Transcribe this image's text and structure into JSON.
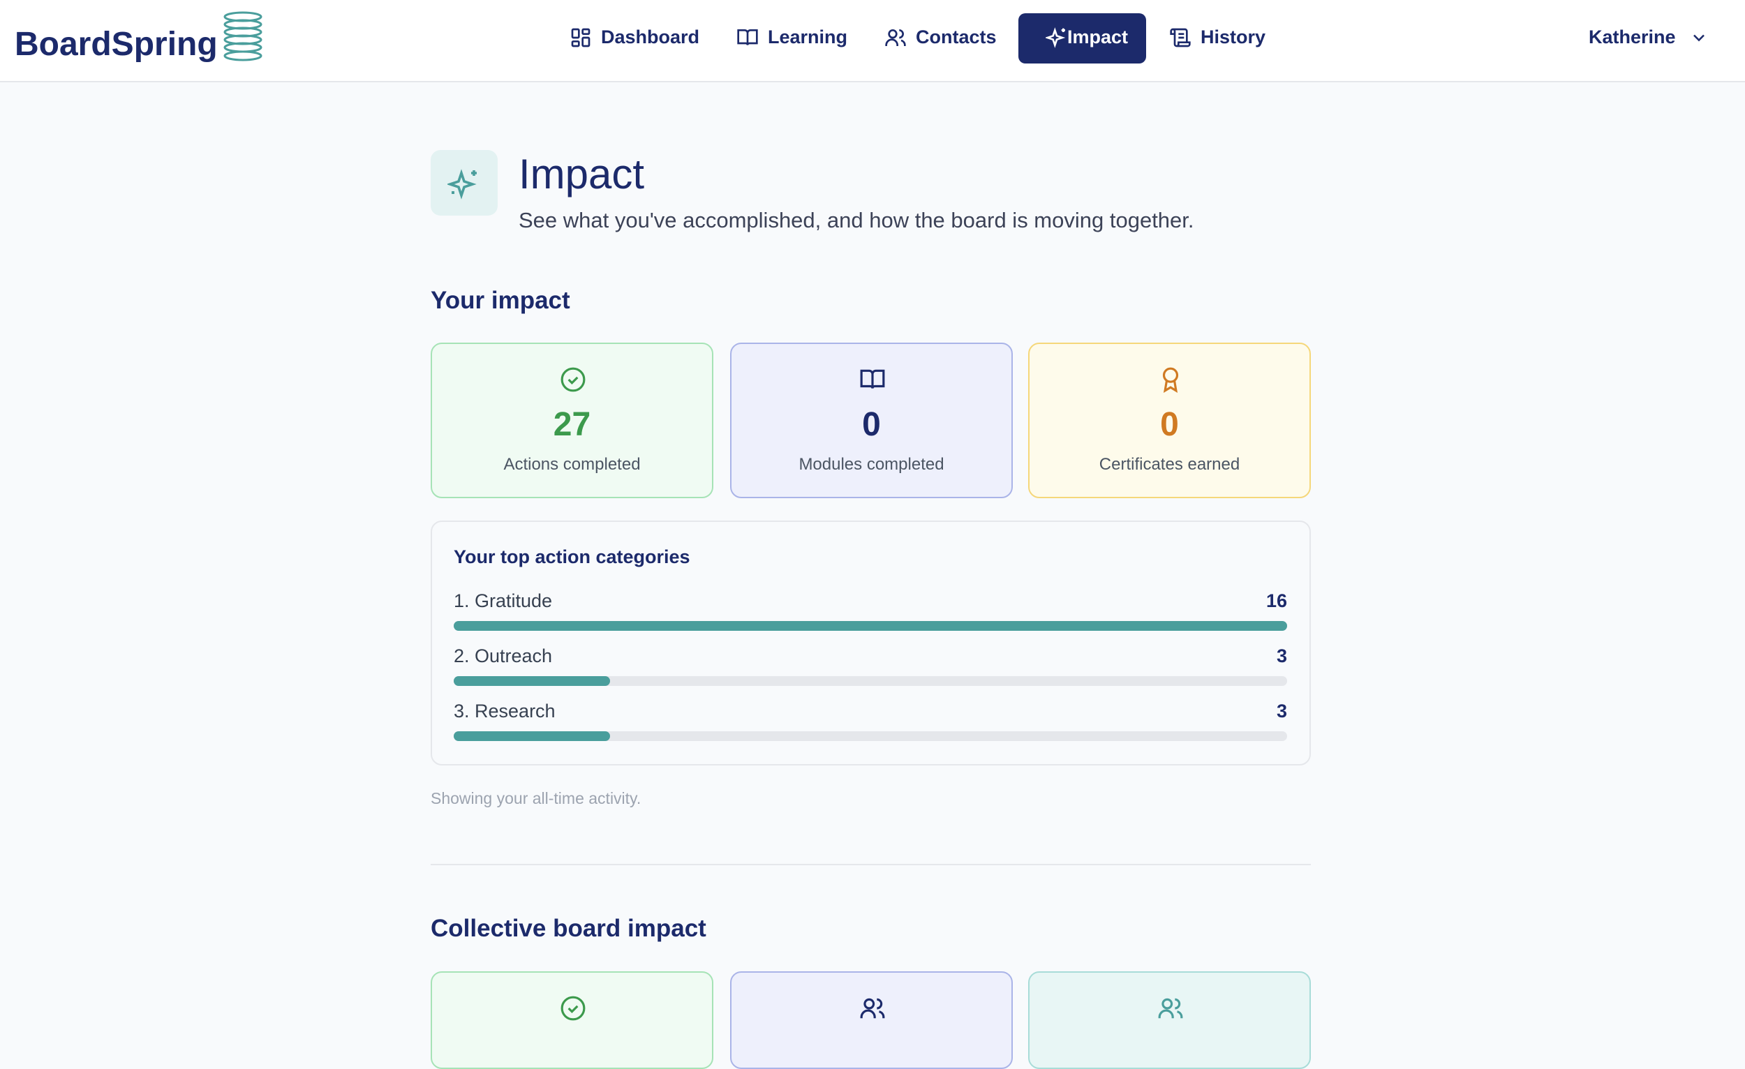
{
  "header": {
    "logo": "BoardSpring",
    "nav": [
      "Dashboard",
      "Learning",
      "Contacts",
      "Impact",
      "History"
    ],
    "user": "Katherine"
  },
  "page": {
    "title": "Impact",
    "subtitle": "See what you've accomplished, and how the board is moving together."
  },
  "your_impact": {
    "heading": "Your impact",
    "stats": [
      {
        "value": 27,
        "label": "Actions completed"
      },
      {
        "value": 0,
        "label": "Modules completed"
      },
      {
        "value": 0,
        "label": "Certificates earned"
      }
    ],
    "categories": {
      "title": "Your top action categories",
      "items": [
        {
          "label": "1. Gratitude",
          "count": 16
        },
        {
          "label": "2. Outreach",
          "count": 3
        },
        {
          "label": "3. Research",
          "count": 3
        }
      ]
    },
    "note": "Showing your all-time activity."
  },
  "collective": {
    "heading": "Collective board impact"
  }
}
